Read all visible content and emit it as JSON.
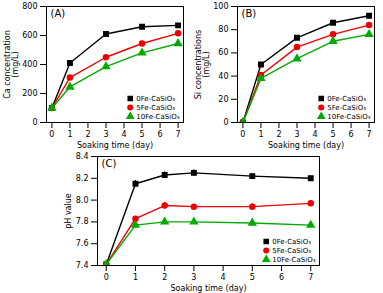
{
  "chart_data": [
    {
      "type": "line",
      "annotation": "(A)",
      "xlabel": "Soaking time (day)",
      "ylabel": "Ca concentration\n(mg/L)",
      "x": [
        0,
        1,
        3,
        5,
        7
      ],
      "series": [
        {
          "name": "0Fe-CaSiO₃",
          "color": "#000000",
          "marker": "square",
          "values": [
            100,
            410,
            610,
            660,
            670
          ]
        },
        {
          "name": "5Fe-CaSiO₃",
          "color": "#ee0000",
          "marker": "circle",
          "values": [
            100,
            310,
            450,
            545,
            615
          ]
        },
        {
          "name": "10Fe-CaSiO₃",
          "color": "#00aa00",
          "marker": "triangle",
          "values": [
            100,
            245,
            385,
            480,
            545
          ]
        }
      ],
      "xlim": [
        -0.3,
        7.3
      ],
      "xticks": [
        0,
        1,
        2,
        3,
        4,
        5,
        6,
        7
      ],
      "ylim": [
        0,
        800
      ],
      "yticks": [
        0,
        200,
        400,
        600,
        800
      ],
      "legend": "lower right"
    },
    {
      "type": "line",
      "annotation": "(B)",
      "xlabel": "Soaking time (day)",
      "ylabel": "Si concentrations\n(mg/L)",
      "x": [
        0,
        1,
        3,
        5,
        7
      ],
      "series": [
        {
          "name": "0Fe-CaSiO₃",
          "color": "#000000",
          "marker": "square",
          "values": [
            0,
            50,
            73,
            86,
            92
          ]
        },
        {
          "name": "5Fe-CaSiO₃",
          "color": "#ee0000",
          "marker": "circle",
          "values": [
            0,
            41,
            65,
            76,
            84
          ]
        },
        {
          "name": "10Fe-CaSiO₃",
          "color": "#00aa00",
          "marker": "triangle",
          "values": [
            0,
            38,
            55,
            70,
            76
          ]
        }
      ],
      "xlim": [
        -0.3,
        7.3
      ],
      "xticks": [
        0,
        1,
        2,
        3,
        4,
        5,
        6,
        7
      ],
      "ylim": [
        0,
        100
      ],
      "yticks": [
        0,
        20,
        40,
        60,
        80,
        100
      ],
      "legend": "lower right"
    },
    {
      "type": "line",
      "annotation": "(C)",
      "xlabel": "Soaking time (day)",
      "ylabel": "pH value",
      "x": [
        0,
        1,
        2,
        3,
        5,
        7
      ],
      "series": [
        {
          "name": "0Fe-CaSiO₃",
          "color": "#000000",
          "marker": "square",
          "values": [
            7.41,
            8.15,
            8.23,
            8.25,
            8.22,
            8.2
          ],
          "errors": [
            0.01,
            0.03,
            0.03,
            0.03,
            0.02,
            0.02
          ]
        },
        {
          "name": "5Fe-CaSiO₃",
          "color": "#ee0000",
          "marker": "circle",
          "values": [
            7.41,
            7.83,
            7.95,
            7.94,
            7.94,
            7.97
          ],
          "errors": [
            0.01,
            0.02,
            0.03,
            0.02,
            0.03,
            0.02
          ]
        },
        {
          "name": "10Fe-CaSiO₃",
          "color": "#00aa00",
          "marker": "triangle",
          "values": [
            7.41,
            7.77,
            7.8,
            7.8,
            7.79,
            7.77
          ],
          "errors": [
            0.01,
            0.02,
            0.02,
            0.02,
            0.02,
            0.02
          ]
        }
      ],
      "xlim": [
        -0.3,
        7.3
      ],
      "xticks": [
        0,
        1,
        2,
        3,
        4,
        5,
        6,
        7
      ],
      "ylim": [
        7.4,
        8.4
      ],
      "yticks": [
        7.4,
        7.6,
        7.8,
        {
          "value": 8,
          "label": "8.0"
        },
        8.2,
        8.4
      ],
      "legend": "lower right"
    }
  ]
}
